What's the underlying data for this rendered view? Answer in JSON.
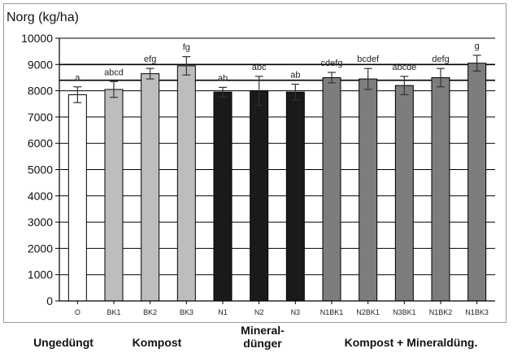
{
  "chart_data": {
    "type": "bar",
    "ylabel": "Norg (kg/ha)",
    "ylim": [
      0,
      10000
    ],
    "yticks": [
      0,
      1000,
      2000,
      3000,
      4000,
      5000,
      6000,
      7000,
      8000,
      9000,
      10000
    ],
    "categories": [
      "O",
      "BK1",
      "BK2",
      "BK3",
      "N1",
      "N2",
      "N3",
      "N1BK1",
      "N2BK1",
      "N3BK1",
      "N1BK2",
      "N1BK3"
    ],
    "values": [
      7850,
      8050,
      8650,
      8950,
      7950,
      8000,
      7950,
      8500,
      8450,
      8200,
      8500,
      9050
    ],
    "errors": [
      300,
      300,
      200,
      350,
      180,
      550,
      300,
      200,
      400,
      350,
      350,
      300
    ],
    "significance_letters": [
      "a",
      "abcd",
      "efg",
      "fg",
      "ab",
      "abc",
      "ab",
      "cdefg",
      "bcdef",
      "abcde",
      "defg",
      "g"
    ],
    "bar_colors": [
      "#ffffff",
      "#bdbdbd",
      "#bdbdbd",
      "#bdbdbd",
      "#1a1a1a",
      "#1a1a1a",
      "#1a1a1a",
      "#7d7d7d",
      "#7d7d7d",
      "#7d7d7d",
      "#7d7d7d",
      "#7d7d7d"
    ],
    "reference_lines": [
      8400,
      9000
    ],
    "grid": true,
    "groups": [
      {
        "label": "Ungedüngt",
        "first": 0,
        "last": 0
      },
      {
        "label": "Kompost",
        "first": 1,
        "last": 3
      },
      {
        "label": "Mineral-dünger",
        "first": 4,
        "last": 6
      },
      {
        "label": "Kompost + Mineraldüng.",
        "first": 7,
        "last": 11
      }
    ]
  }
}
